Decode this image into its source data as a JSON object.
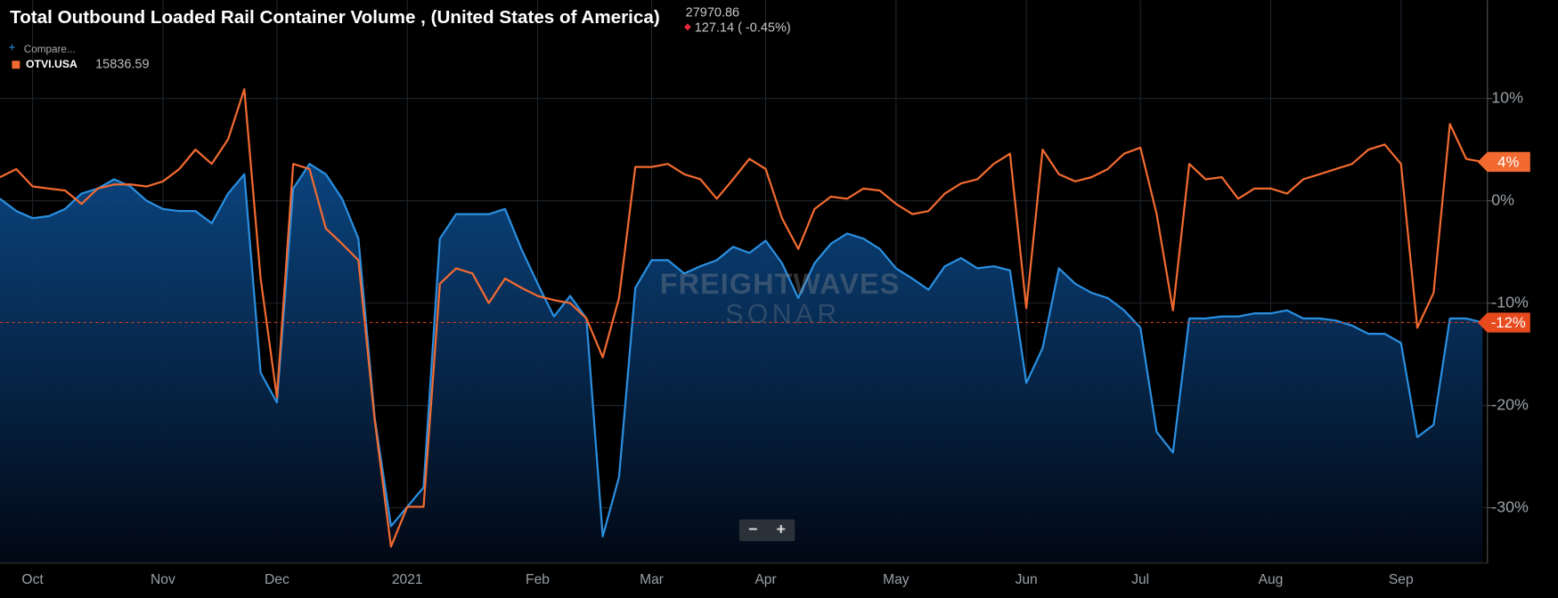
{
  "chart_data": {
    "type": "line",
    "title": "Total Outbound Loaded Rail Container Volume , (United States of America)",
    "header_value": "27970.86",
    "header_change": "127.14 ( -0.45%)",
    "legend_value": "15836.59",
    "watermark": [
      "FREIGHTWAVES",
      "SONAR"
    ],
    "zoom_buttons": [
      "−",
      "+"
    ],
    "categories": [
      null,
      null,
      "Oct",
      null,
      null,
      null,
      null,
      null,
      null,
      null,
      "Nov",
      null,
      null,
      null,
      null,
      null,
      null,
      "Dec",
      null,
      null,
      null,
      null,
      null,
      null,
      null,
      "2021",
      null,
      null,
      null,
      null,
      null,
      null,
      null,
      "Feb",
      null,
      null,
      null,
      null,
      null,
      null,
      "Mar",
      null,
      null,
      null,
      null,
      null,
      null,
      "Apr",
      null,
      null,
      null,
      null,
      null,
      null,
      null,
      "May",
      null,
      null,
      null,
      null,
      null,
      null,
      null,
      "Jun",
      null,
      null,
      null,
      null,
      null,
      null,
      "Jul",
      null,
      null,
      null,
      null,
      null,
      null,
      null,
      "Aug",
      null,
      null,
      null,
      null,
      null,
      null,
      null,
      "Sep",
      null,
      null,
      null,
      null,
      null
    ],
    "series": [
      {
        "name": "Compare...",
        "color": "#2a8fe0",
        "area": true,
        "last_label": "-12%",
        "values": [
          0.2,
          -1.0,
          -1.7,
          -1.5,
          -0.8,
          0.7,
          1.2,
          2.1,
          1.4,
          0.0,
          -0.8,
          -1.0,
          -1.0,
          -2.2,
          0.7,
          2.6,
          -16.8,
          -19.7,
          1.2,
          3.6,
          2.6,
          0.2,
          -3.7,
          -21.2,
          -31.8,
          -29.9,
          -28.0,
          -3.7,
          -1.3,
          -1.3,
          -1.3,
          -0.8,
          -4.7,
          -8.1,
          -11.3,
          -9.3,
          -11.5,
          -32.8,
          -27.0,
          -8.5,
          -5.8,
          -5.8,
          -7.1,
          -6.4,
          -5.8,
          -4.5,
          -5.1,
          -3.9,
          -6.1,
          -9.5,
          -6.1,
          -4.2,
          -3.2,
          -3.7,
          -4.7,
          -6.6,
          -7.6,
          -8.7,
          -6.4,
          -5.6,
          -6.6,
          -6.4,
          -6.8,
          -17.8,
          -14.4,
          -6.6,
          -8.1,
          -9.0,
          -9.5,
          -10.7,
          -12.4,
          -22.6,
          -24.6,
          -11.5,
          -11.5,
          -11.3,
          -11.3,
          -11.0,
          -11.0,
          -10.7,
          -11.5,
          -11.5,
          -11.7,
          -12.2,
          -13.0,
          -13.0,
          -13.9,
          -23.1,
          -21.9,
          -11.5,
          -11.5,
          -11.9
        ]
      },
      {
        "name": "OTVI.USA",
        "color": "#f26a30",
        "area": false,
        "last_label": "4%",
        "values": [
          2.3,
          3.1,
          1.4,
          1.2,
          1.0,
          -0.3,
          1.2,
          1.6,
          1.6,
          1.4,
          1.9,
          3.1,
          5.0,
          3.6,
          6.0,
          10.9,
          -7.6,
          -19.2,
          3.6,
          3.1,
          -2.7,
          -4.2,
          -5.8,
          -21.4,
          -33.8,
          -29.9,
          -29.9,
          -8.1,
          -6.6,
          -7.1,
          -10.0,
          -7.6,
          -8.5,
          -9.3,
          -9.7,
          -10.0,
          -11.5,
          -15.3,
          -9.5,
          3.3,
          3.3,
          3.6,
          2.6,
          2.1,
          0.2,
          2.1,
          4.1,
          3.1,
          -1.7,
          -4.7,
          -0.8,
          0.4,
          0.2,
          1.2,
          1.0,
          -0.3,
          -1.3,
          -1.0,
          0.7,
          1.7,
          2.1,
          3.6,
          4.6,
          -10.5,
          5.0,
          2.6,
          1.9,
          2.3,
          3.1,
          4.6,
          5.2,
          -1.3,
          -10.7,
          3.6,
          2.1,
          2.3,
          0.2,
          1.2,
          1.2,
          0.7,
          2.1,
          2.6,
          3.1,
          3.6,
          5.0,
          5.5,
          3.6,
          -12.4,
          -9.0,
          7.5,
          4.1,
          3.8
        ]
      }
    ],
    "ylim": [
      -35.4,
      19.6
    ],
    "yticks": [
      {
        "value": 10,
        "label": "10%"
      },
      {
        "value": 0,
        "label": "0%"
      },
      {
        "value": -10,
        "label": "-10%"
      },
      {
        "value": -20,
        "label": "-20%"
      },
      {
        "value": -30,
        "label": "-30%"
      }
    ],
    "grid": true,
    "y_axis_side": "right"
  }
}
